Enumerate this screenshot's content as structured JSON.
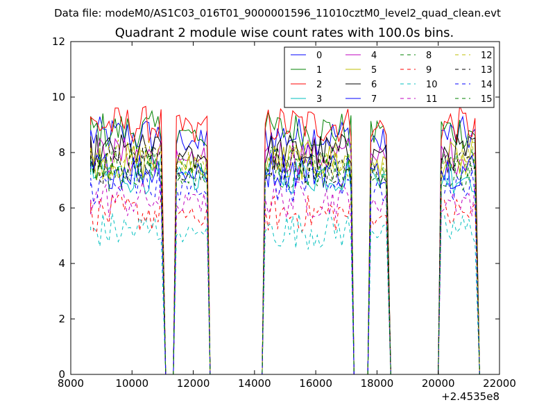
{
  "chart_data": {
    "type": "line",
    "suptitle": "Data file: modeM0/AS1C03_016T01_9000001596_11010cztM0_level2_quad_clean.evt",
    "title": "Quadrant 2 module wise count rates with 100.0s bins.",
    "xlabel": "",
    "ylabel": "",
    "x_offset_label": "+2.4535e8",
    "xlim": [
      8000,
      22000
    ],
    "ylim": [
      0,
      12
    ],
    "x_ticks": [
      8000,
      10000,
      12000,
      14000,
      16000,
      18000,
      20000,
      22000
    ],
    "x_tick_labels": [
      "8000",
      "10000",
      "12000",
      "14000",
      "16000",
      "18000",
      "20000",
      "22000"
    ],
    "y_ticks": [
      0,
      2,
      4,
      6,
      8,
      10,
      12
    ],
    "y_tick_labels": [
      "0",
      "2",
      "4",
      "6",
      "8",
      "10",
      "12"
    ],
    "grid": false,
    "legend_position": "top-right",
    "legend_columns": 4,
    "segments": [
      [
        8650,
        11000
      ],
      [
        11450,
        12450
      ],
      [
        14350,
        17150
      ],
      [
        17800,
        18350
      ],
      [
        20100,
        21250
      ]
    ],
    "series": [
      {
        "name": "0",
        "color": "#0000ff",
        "style": "solid",
        "level": 8.6
      },
      {
        "name": "1",
        "color": "#008000",
        "style": "solid",
        "level": 8.8
      },
      {
        "name": "2",
        "color": "#ff0000",
        "style": "solid",
        "level": 9.0
      },
      {
        "name": "3",
        "color": "#00bfbf",
        "style": "solid",
        "level": 7.2
      },
      {
        "name": "4",
        "color": "#bf00bf",
        "style": "solid",
        "level": 7.9
      },
      {
        "name": "5",
        "color": "#bfbf00",
        "style": "solid",
        "level": 7.7
      },
      {
        "name": "6",
        "color": "#000000",
        "style": "solid",
        "level": 8.0
      },
      {
        "name": "7",
        "color": "#0000ff",
        "style": "solid",
        "level": 7.4
      },
      {
        "name": "8",
        "color": "#008000",
        "style": "dashed",
        "level": 7.6
      },
      {
        "name": "9",
        "color": "#ff0000",
        "style": "dashed",
        "level": 5.8
      },
      {
        "name": "10",
        "color": "#00bfbf",
        "style": "dashed",
        "level": 5.2
      },
      {
        "name": "11",
        "color": "#bf00bf",
        "style": "dashed",
        "level": 6.3
      },
      {
        "name": "12",
        "color": "#bfbf00",
        "style": "dashed",
        "level": 7.8
      },
      {
        "name": "13",
        "color": "#000000",
        "style": "dashed",
        "level": 7.5
      },
      {
        "name": "14",
        "color": "#0000ff",
        "style": "dashed",
        "level": 6.8
      },
      {
        "name": "15",
        "color": "#008000",
        "style": "dashed",
        "level": 7.3
      }
    ]
  }
}
